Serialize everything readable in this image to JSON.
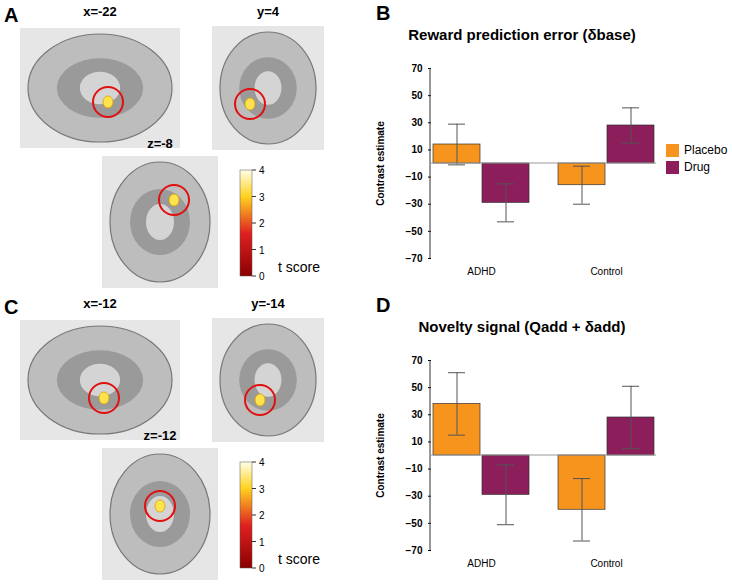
{
  "chart_data": [
    {
      "panel": "B",
      "type": "bar",
      "title": "Reward prediction error (δbase)",
      "categories": [
        "ADHD",
        "Control"
      ],
      "y_label": "Contrast estimate",
      "ylim": [
        -70,
        70
      ],
      "yticks": [
        -70,
        -50,
        -30,
        -10,
        10,
        30,
        50,
        70
      ],
      "legend": "right",
      "series": [
        {
          "name": "Placebo",
          "color": "#F7941D",
          "values": [
            14,
            -16
          ],
          "errors": [
            15,
            14
          ]
        },
        {
          "name": "Drug",
          "color": "#8B1E5B",
          "values": [
            -29,
            28
          ],
          "errors": [
            14,
            13
          ]
        }
      ]
    },
    {
      "panel": "D",
      "type": "bar",
      "title": "Novelty signal (Qadd + δadd)",
      "categories": [
        "ADHD",
        "Control"
      ],
      "y_label": "Contrast estimate",
      "ylim": [
        -70,
        70
      ],
      "yticks": [
        -70,
        -50,
        -30,
        -10,
        10,
        30,
        50,
        70
      ],
      "series": [
        {
          "name": "Placebo",
          "color": "#F7941D",
          "values": [
            38,
            -40
          ],
          "errors": [
            23,
            23
          ]
        },
        {
          "name": "Drug",
          "color": "#8B1E5B",
          "values": [
            -29,
            28
          ],
          "errors": [
            22,
            23
          ]
        }
      ]
    }
  ],
  "images": [
    {
      "panel": "A",
      "slices": [
        "x=-22",
        "y=4",
        "z=-8"
      ],
      "colorbar": {
        "label": "t score",
        "range": [
          0,
          4
        ],
        "ticks": [
          0,
          1,
          2,
          3,
          4
        ]
      }
    },
    {
      "panel": "C",
      "slices": [
        "x=-12",
        "y=-14",
        "z=-12"
      ],
      "colorbar": {
        "label": "t score",
        "range": [
          0,
          4
        ],
        "ticks": [
          0,
          1,
          2,
          3,
          4
        ]
      }
    }
  ]
}
